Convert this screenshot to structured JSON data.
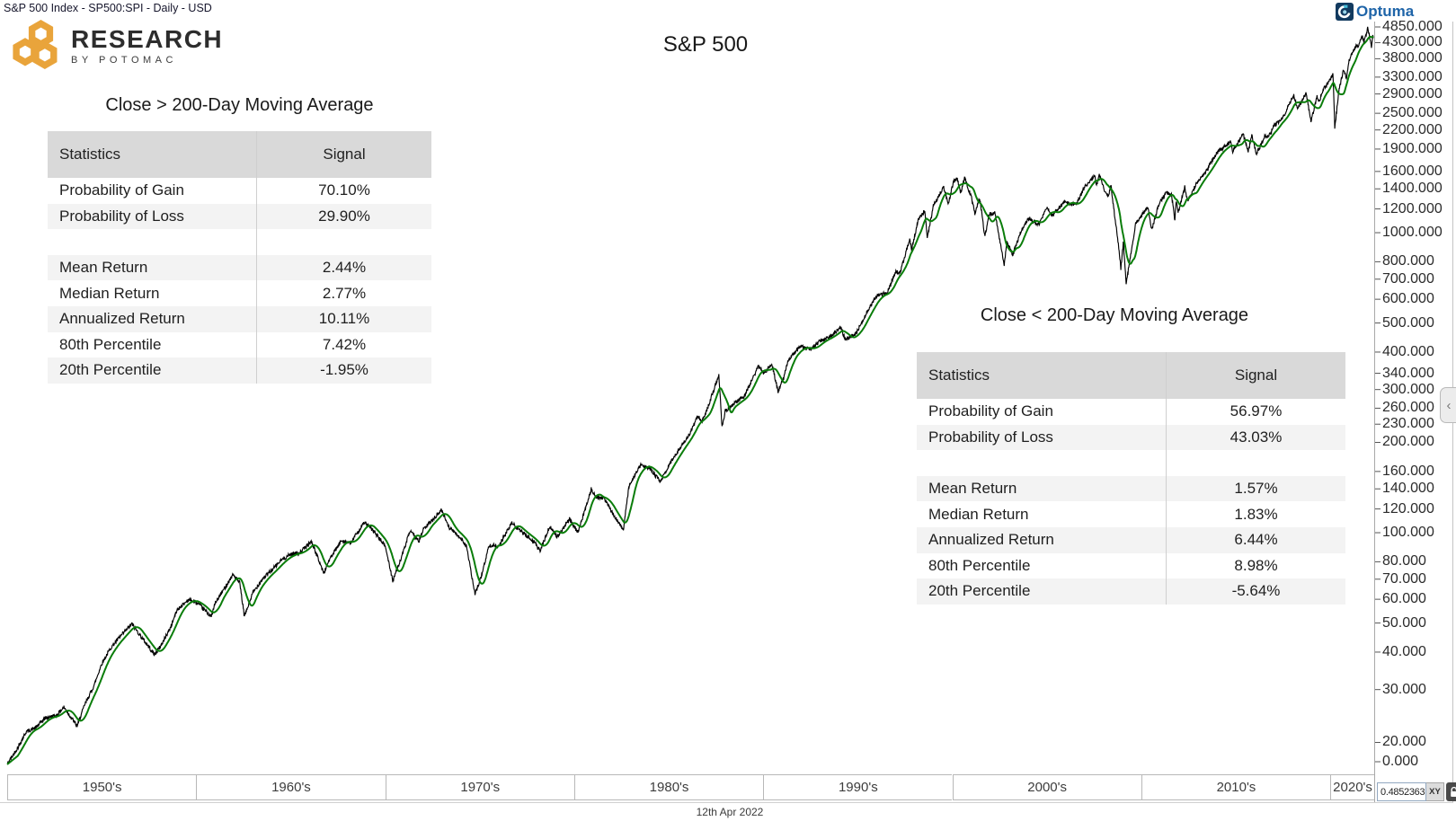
{
  "window": {
    "title": "S&P 500 Index  - SP500:SPI - Daily - USD"
  },
  "branding": {
    "research_logo": {
      "line1": "RESEARCH",
      "line2": "BY POTOMAC",
      "gold": "#E9A43B"
    },
    "optuma": {
      "label": "Optuma",
      "text_blue": "#1E64A8",
      "icon_navy": "#123A5F",
      "icon_teal": "#45BCD8"
    }
  },
  "chart_title": "S&P 500",
  "tables": {
    "above": {
      "title": "Close > 200-Day Moving Average",
      "columns": [
        "Statistics",
        "Signal"
      ],
      "rows": [
        [
          "Probability of Gain",
          "70.10%"
        ],
        [
          "Probability of Loss",
          "29.90%"
        ],
        [
          "",
          ""
        ],
        [
          "Mean Return",
          "2.44%"
        ],
        [
          "Median Return",
          "2.77%"
        ],
        [
          "Annualized Return",
          "10.11%"
        ],
        [
          "80th Percentile",
          "7.42%"
        ],
        [
          "20th Percentile",
          "-1.95%"
        ]
      ]
    },
    "below": {
      "title": "Close < 200-Day Moving Average",
      "columns": [
        "Statistics",
        "Signal"
      ],
      "rows": [
        [
          "Probability of Gain",
          "56.97%"
        ],
        [
          "Probability of Loss",
          "43.03%"
        ],
        [
          "",
          ""
        ],
        [
          "Mean Return",
          "1.57%"
        ],
        [
          "Median Return",
          "1.83%"
        ],
        [
          "Annualized Return",
          "6.44%"
        ],
        [
          "80th Percentile",
          "8.98%"
        ],
        [
          "20th Percentile",
          "-5.64%"
        ]
      ]
    }
  },
  "footer": {
    "date": "12th Apr 2022"
  },
  "status_box": {
    "value": "0.4852363",
    "xy_label": "XY",
    "lock_icon": "unlocked"
  },
  "chart_data": {
    "type": "line",
    "title": "S&P 500",
    "x_unit": "year",
    "x_range": [
      1950,
      2022.3
    ],
    "y_scale": "log",
    "y_tick_format": "0.000",
    "y_ticks": [
      4850,
      4300,
      3800,
      3300,
      2900,
      2500,
      2200,
      1900,
      1600,
      1400,
      1200,
      1000,
      800,
      700,
      600,
      500,
      400,
      340,
      300,
      260,
      230,
      200,
      160,
      140,
      120,
      100,
      80,
      70,
      60,
      50,
      40,
      30,
      20,
      0
    ],
    "x_decades": [
      "1950's",
      "1960's",
      "1970's",
      "1980's",
      "1990's",
      "2000's",
      "2010's",
      "2020's"
    ],
    "legend": "none",
    "grid": "off",
    "series": [
      {
        "name": "S&P 500 Close (daily)",
        "color": "#000000",
        "points": [
          [
            1950,
            16.9
          ],
          [
            1950.6,
            19.4
          ],
          [
            1951,
            21.7
          ],
          [
            1951.5,
            22.4
          ],
          [
            1952,
            24.1
          ],
          [
            1952.6,
            24.6
          ],
          [
            1953,
            26.2
          ],
          [
            1953.7,
            22.7
          ],
          [
            1954.1,
            26.7
          ],
          [
            1954.6,
            31
          ],
          [
            1955,
            36.6
          ],
          [
            1955.5,
            41.5
          ],
          [
            1956,
            45.2
          ],
          [
            1956.6,
            49.7
          ],
          [
            1957.1,
            44.9
          ],
          [
            1957.8,
            39.2
          ],
          [
            1958.1,
            41.7
          ],
          [
            1958.6,
            47.7
          ],
          [
            1959,
            55.4
          ],
          [
            1959.6,
            59.9
          ],
          [
            1960.1,
            58
          ],
          [
            1960.8,
            52.5
          ],
          [
            1961,
            58.1
          ],
          [
            1961.95,
            72.6
          ],
          [
            1962.3,
            68
          ],
          [
            1962.55,
            52.6
          ],
          [
            1963,
            63.1
          ],
          [
            1963.5,
            70.1
          ],
          [
            1964,
            75
          ],
          [
            1964.5,
            81
          ],
          [
            1965,
            84.8
          ],
          [
            1965.5,
            86
          ],
          [
            1966.1,
            93.5
          ],
          [
            1966.75,
            73.2
          ],
          [
            1967,
            80.3
          ],
          [
            1967.7,
            94.5
          ],
          [
            1968.15,
            92
          ],
          [
            1968.9,
            108.4
          ],
          [
            1969.4,
            101
          ],
          [
            1970,
            90.3
          ],
          [
            1970.4,
            69.3
          ],
          [
            1970.9,
            84
          ],
          [
            1971.3,
            101
          ],
          [
            1971.8,
            94
          ],
          [
            1972,
            102.1
          ],
          [
            1972.98,
            119
          ],
          [
            1973.4,
            104
          ],
          [
            1974,
            96
          ],
          [
            1974.3,
            90
          ],
          [
            1974.75,
            62.3
          ],
          [
            1975.1,
            72
          ],
          [
            1975.5,
            91
          ],
          [
            1976,
            90.2
          ],
          [
            1976.7,
            107.8
          ],
          [
            1977.1,
            102
          ],
          [
            1977.9,
            93
          ],
          [
            1978.2,
            86.9
          ],
          [
            1978.7,
            105
          ],
          [
            1979.1,
            97
          ],
          [
            1979.75,
            111
          ],
          [
            1980.2,
            100
          ],
          [
            1980.9,
            140
          ],
          [
            1981.1,
            132
          ],
          [
            1981.6,
            130
          ],
          [
            1982,
            117
          ],
          [
            1982.6,
            102.4
          ],
          [
            1982.9,
            143
          ],
          [
            1983.5,
            168
          ],
          [
            1984,
            164
          ],
          [
            1984.55,
            148
          ],
          [
            1985,
            167.2
          ],
          [
            1985.5,
            188
          ],
          [
            1986.1,
            213
          ],
          [
            1986.55,
            245
          ],
          [
            1986.75,
            234
          ],
          [
            1987.1,
            265
          ],
          [
            1987.65,
            336
          ],
          [
            1987.82,
            224
          ],
          [
            1988,
            255
          ],
          [
            1988.5,
            271
          ],
          [
            1989,
            285
          ],
          [
            1989.75,
            359
          ],
          [
            1990.05,
            339
          ],
          [
            1990.45,
            368
          ],
          [
            1990.78,
            295.5
          ],
          [
            1991.1,
            330
          ],
          [
            1991.3,
            375
          ],
          [
            1991.95,
            417
          ],
          [
            1992.5,
            408
          ],
          [
            1993,
            435
          ],
          [
            1993.5,
            450
          ],
          [
            1994.1,
            482
          ],
          [
            1994.35,
            439
          ],
          [
            1994.9,
            461
          ],
          [
            1995.5,
            545
          ],
          [
            1996,
            616
          ],
          [
            1996.55,
            630
          ],
          [
            1997,
            740
          ],
          [
            1997.25,
            737
          ],
          [
            1997.75,
            954
          ],
          [
            1997.85,
            877
          ],
          [
            1998.2,
            1100
          ],
          [
            1998.55,
            1187
          ],
          [
            1998.68,
            957
          ],
          [
            1999,
            1229
          ],
          [
            1999.55,
            1420
          ],
          [
            1999.8,
            1247
          ],
          [
            2000.05,
            1469
          ],
          [
            2000.25,
            1527
          ],
          [
            2000.45,
            1360
          ],
          [
            2000.65,
            1520
          ],
          [
            2001,
            1320
          ],
          [
            2001.2,
            1160
          ],
          [
            2001.45,
            1312
          ],
          [
            2001.73,
            966
          ],
          [
            2001.95,
            1150
          ],
          [
            2002.25,
            1170
          ],
          [
            2002.75,
            777
          ],
          [
            2002.9,
            936
          ],
          [
            2003.2,
            841
          ],
          [
            2003.6,
            1000
          ],
          [
            2004,
            1112
          ],
          [
            2004.6,
            1065
          ],
          [
            2005,
            1212
          ],
          [
            2005.3,
            1140
          ],
          [
            2005.95,
            1270
          ],
          [
            2006.55,
            1235
          ],
          [
            2007,
            1418
          ],
          [
            2007.55,
            1553
          ],
          [
            2007.63,
            1430
          ],
          [
            2007.78,
            1565
          ],
          [
            2008.05,
            1380
          ],
          [
            2008.25,
            1330
          ],
          [
            2008.4,
            1426
          ],
          [
            2008.85,
            850
          ],
          [
            2008.92,
            752
          ],
          [
            2009.05,
            930
          ],
          [
            2009.2,
            676
          ],
          [
            2009.7,
            1070
          ],
          [
            2010.05,
            1150
          ],
          [
            2010.35,
            1217
          ],
          [
            2010.55,
            1022
          ],
          [
            2010.95,
            1257
          ],
          [
            2011.35,
            1363
          ],
          [
            2011.6,
            1340
          ],
          [
            2011.78,
            1099
          ],
          [
            2011.85,
            1285
          ],
          [
            2011.95,
            1158
          ],
          [
            2012.3,
            1419
          ],
          [
            2012.45,
            1278
          ],
          [
            2012.95,
            1466
          ],
          [
            2013.5,
            1631
          ],
          [
            2014,
            1848
          ],
          [
            2014.75,
            2011
          ],
          [
            2014.82,
            1862
          ],
          [
            2015.4,
            2131
          ],
          [
            2015.66,
            1868
          ],
          [
            2015.85,
            2102
          ],
          [
            2016.1,
            1829
          ],
          [
            2016.55,
            2099
          ],
          [
            2016.85,
            2126
          ],
          [
            2017,
            2263
          ],
          [
            2017.5,
            2423
          ],
          [
            2018.07,
            2873
          ],
          [
            2018.27,
            2581
          ],
          [
            2018.73,
            2931
          ],
          [
            2018.98,
            2351
          ],
          [
            2019.3,
            2834
          ],
          [
            2019.42,
            2744
          ],
          [
            2019.6,
            2980
          ],
          [
            2020,
            3231
          ],
          [
            2020.14,
            3386
          ],
          [
            2020.24,
            2237
          ],
          [
            2020.45,
            2960
          ],
          [
            2020.7,
            3500
          ],
          [
            2020.85,
            3270
          ],
          [
            2021,
            3756
          ],
          [
            2021.35,
            4180
          ],
          [
            2021.45,
            4160
          ],
          [
            2021.7,
            4520
          ],
          [
            2021.78,
            4300
          ],
          [
            2021.98,
            4793
          ],
          [
            2022.08,
            4500
          ],
          [
            2022.18,
            4170
          ],
          [
            2022.25,
            4580
          ],
          [
            2022.29,
            4392
          ]
        ]
      },
      {
        "name": "200-Day Moving Average",
        "color": "#0A7D0A",
        "derived": "trailing mean of S&P 500 Close"
      }
    ]
  }
}
